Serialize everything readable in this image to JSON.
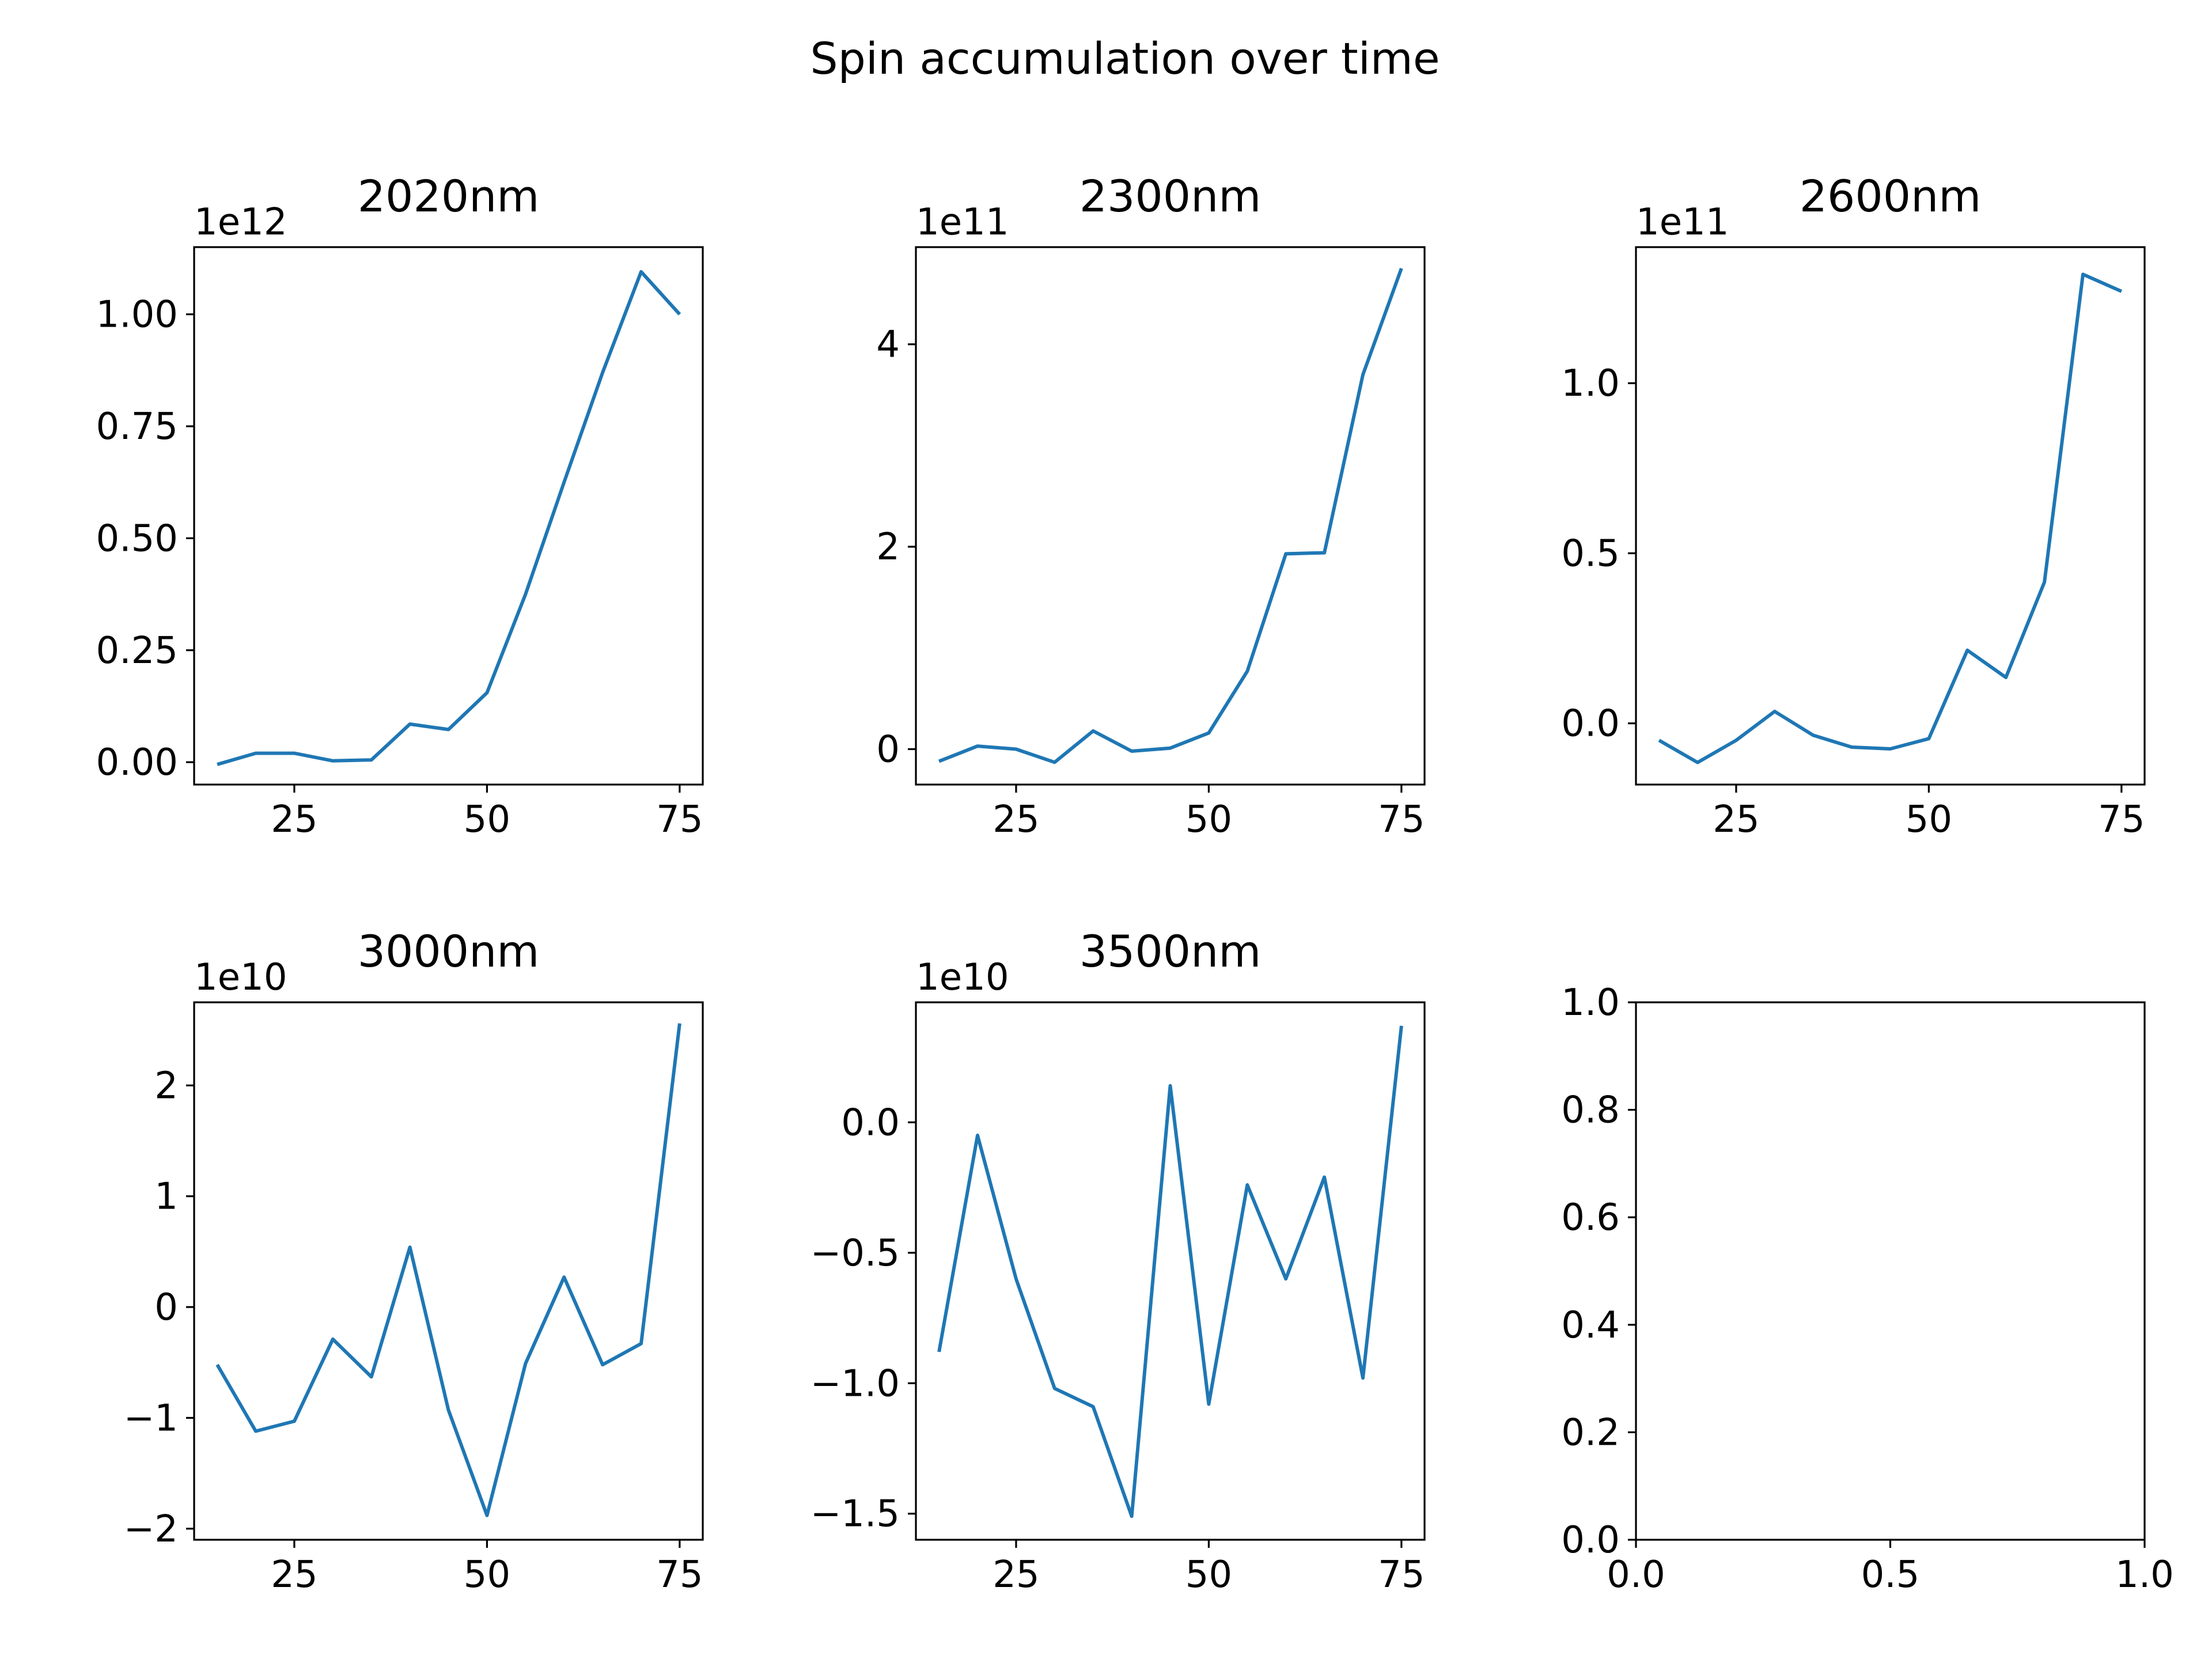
{
  "figure": {
    "suptitle": "Spin accumulation over time"
  },
  "colors": {
    "line": "#1f77b4"
  },
  "chart_data": [
    {
      "type": "line",
      "title": "2020nm",
      "offset_text": "1e12",
      "x": [
        15,
        20,
        25,
        30,
        35,
        40,
        45,
        50,
        55,
        60,
        65,
        70,
        75
      ],
      "y": [
        -0.005,
        0.02,
        0.02,
        0.003,
        0.005,
        0.085,
        0.073,
        0.155,
        0.375,
        0.625,
        0.87,
        1.095,
        1.0
      ],
      "xlim": [
        12,
        78
      ],
      "ylim": [
        -0.05,
        1.15
      ],
      "xticks": [
        25,
        50,
        75
      ],
      "xtick_labels": [
        "25",
        "50",
        "75"
      ],
      "yticks": [
        0,
        0.25,
        0.5,
        0.75,
        1.0
      ],
      "ytick_labels": [
        "0.00",
        "0.25",
        "0.50",
        "0.75",
        "1.00"
      ]
    },
    {
      "type": "line",
      "title": "2300nm",
      "offset_text": "1e11",
      "x": [
        15,
        20,
        25,
        30,
        35,
        40,
        45,
        50,
        55,
        60,
        65,
        70,
        75
      ],
      "y": [
        -0.12,
        0.03,
        0.0,
        -0.13,
        0.18,
        -0.02,
        0.01,
        0.16,
        0.77,
        1.93,
        1.94,
        3.7,
        4.75
      ],
      "xlim": [
        12,
        78
      ],
      "ylim": [
        -0.35,
        4.96
      ],
      "xticks": [
        25,
        50,
        75
      ],
      "xtick_labels": [
        "25",
        "50",
        "75"
      ],
      "yticks": [
        0,
        2,
        4
      ],
      "ytick_labels": [
        "0",
        "2",
        "4"
      ]
    },
    {
      "type": "line",
      "title": "2600nm",
      "offset_text": "1e11",
      "x": [
        15,
        20,
        25,
        30,
        35,
        40,
        45,
        50,
        55,
        60,
        65,
        70,
        75
      ],
      "y": [
        -0.05,
        -0.115,
        -0.05,
        0.035,
        -0.035,
        -0.07,
        -0.075,
        -0.045,
        0.215,
        0.135,
        0.415,
        1.32,
        1.27
      ],
      "xlim": [
        12,
        78
      ],
      "ylim": [
        -0.18,
        1.4
      ],
      "xticks": [
        25,
        50,
        75
      ],
      "xtick_labels": [
        "25",
        "50",
        "75"
      ],
      "yticks": [
        0,
        0.5,
        1.0
      ],
      "ytick_labels": [
        "0.0",
        "0.5",
        "1.0"
      ]
    },
    {
      "type": "line",
      "title": "3000nm",
      "offset_text": "1e10",
      "x": [
        15,
        20,
        25,
        30,
        35,
        40,
        45,
        50,
        55,
        60,
        65,
        70,
        75
      ],
      "y": [
        -0.52,
        -1.12,
        -1.03,
        -0.29,
        -0.63,
        0.54,
        -0.93,
        -1.88,
        -0.51,
        0.27,
        -0.52,
        -0.33,
        2.56
      ],
      "xlim": [
        12,
        78
      ],
      "ylim": [
        -2.1,
        2.75
      ],
      "xticks": [
        25,
        50,
        75
      ],
      "xtick_labels": [
        "25",
        "50",
        "75"
      ],
      "yticks": [
        -2,
        -1,
        0,
        1,
        2
      ],
      "ytick_labels": [
        "−2",
        "−1",
        "0",
        "1",
        "2"
      ]
    },
    {
      "type": "line",
      "title": "3500nm",
      "offset_text": "1e10",
      "x": [
        15,
        20,
        25,
        30,
        35,
        40,
        45,
        50,
        55,
        60,
        65,
        70,
        75
      ],
      "y": [
        -0.88,
        -0.05,
        -0.6,
        -1.02,
        -1.09,
        -1.51,
        0.14,
        -1.08,
        -0.24,
        -0.6,
        -0.21,
        -0.98,
        0.37
      ],
      "xlim": [
        12,
        78
      ],
      "ylim": [
        -1.6,
        0.46
      ],
      "xticks": [
        25,
        50,
        75
      ],
      "xtick_labels": [
        "25",
        "50",
        "75"
      ],
      "yticks": [
        -1.5,
        -1.0,
        -0.5,
        0.0
      ],
      "ytick_labels": [
        "−1.5",
        "−1.0",
        "−0.5",
        "0.0"
      ]
    },
    {
      "type": "line",
      "title": "",
      "offset_text": "",
      "x": [],
      "y": [],
      "xlim": [
        0,
        1
      ],
      "ylim": [
        0,
        1
      ],
      "xticks": [
        0,
        0.5,
        1.0
      ],
      "xtick_labels": [
        "0.0",
        "0.5",
        "1.0"
      ],
      "yticks": [
        0,
        0.2,
        0.4,
        0.6,
        0.8,
        1.0
      ],
      "ytick_labels": [
        "0.0",
        "0.2",
        "0.4",
        "0.6",
        "0.8",
        "1.0"
      ]
    }
  ]
}
